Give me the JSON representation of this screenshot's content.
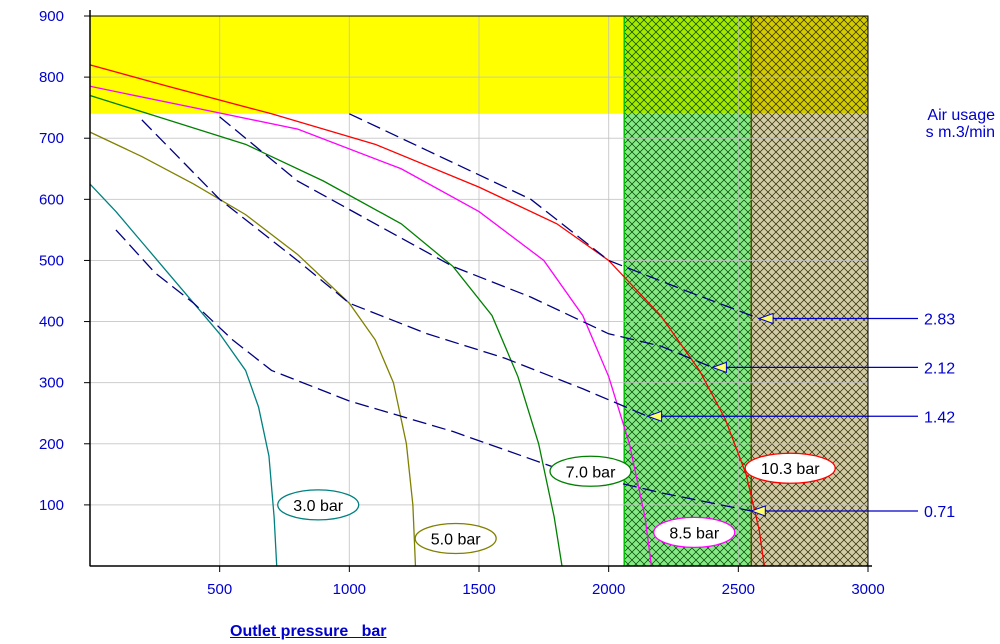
{
  "chart_data": {
    "type": "line",
    "xlabel": "Outlet pressure   bar",
    "ylabel": "Air usage\ns m.3/min",
    "xlim": [
      0,
      3000
    ],
    "ylim": [
      0,
      900
    ],
    "x_ticks": [
      500,
      1000,
      1500,
      2000,
      2500,
      3000
    ],
    "y_ticks": [
      100,
      200,
      300,
      400,
      500,
      600,
      700,
      800,
      900
    ],
    "grid": true,
    "regions": [
      {
        "type": "band-y",
        "from": 740,
        "to": 900,
        "x_to": 2060,
        "color": "#ffff00"
      },
      {
        "type": "band-x",
        "from": 2060,
        "to": 2550,
        "y_from": 740,
        "y_to": 900,
        "color": "#00c000",
        "hatch": "#ffff00"
      },
      {
        "type": "band-x",
        "from": 2060,
        "to": 2550,
        "y_from": 0,
        "y_to": 740,
        "color": "#00c000",
        "hatch": "#ccffcc"
      },
      {
        "type": "band-x",
        "from": 2550,
        "to": 3000,
        "y_from": 740,
        "y_to": 900,
        "color": "#7a6a00",
        "hatch": "#ffff00"
      },
      {
        "type": "band-x",
        "from": 2550,
        "to": 3000,
        "y_from": 0,
        "y_to": 740,
        "color": "#7a6a00",
        "hatch": "#ffffff"
      }
    ],
    "series": [
      {
        "name": "3.0 bar",
        "color": "#008080",
        "x": [
          0,
          100,
          200,
          300,
          400,
          500,
          600,
          650,
          690,
          710,
          720
        ],
        "y": [
          625,
          580,
          530,
          480,
          430,
          380,
          320,
          260,
          180,
          80,
          0
        ]
      },
      {
        "name": "5.0 bar",
        "color": "#808000",
        "x": [
          0,
          200,
          400,
          600,
          800,
          1000,
          1100,
          1170,
          1220,
          1245,
          1255
        ],
        "y": [
          710,
          670,
          625,
          575,
          510,
          430,
          370,
          300,
          200,
          100,
          0
        ]
      },
      {
        "name": "7.0 bar",
        "color": "#008000",
        "x": [
          0,
          300,
          600,
          900,
          1200,
          1400,
          1550,
          1650,
          1730,
          1790,
          1820
        ],
        "y": [
          770,
          730,
          690,
          630,
          560,
          490,
          410,
          310,
          200,
          80,
          0
        ]
      },
      {
        "name": "8.5 bar",
        "color": "#ff00ff",
        "x": [
          0,
          400,
          800,
          1200,
          1500,
          1750,
          1900,
          2000,
          2080,
          2140,
          2165
        ],
        "y": [
          785,
          750,
          715,
          650,
          580,
          500,
          410,
          310,
          200,
          80,
          0
        ]
      },
      {
        "name": "10.3 bar",
        "color": "#ff0000",
        "x": [
          0,
          300,
          700,
          1100,
          1500,
          1800,
          2000,
          2200,
          2350,
          2450,
          2530,
          2580,
          2600
        ],
        "y": [
          820,
          785,
          740,
          690,
          620,
          560,
          500,
          410,
          320,
          240,
          150,
          60,
          0
        ]
      }
    ],
    "air_usage_lines": [
      {
        "label": "2.83",
        "color": "#000080",
        "x": [
          1000,
          1300,
          1700,
          2000,
          2300,
          2580
        ],
        "y": [
          740,
          680,
          600,
          500,
          450,
          405
        ],
        "arrow_value": 405,
        "arrow_x": 2580
      },
      {
        "label": "2.12",
        "color": "#000080",
        "x": [
          500,
          800,
          1100,
          1400,
          1700,
          2000,
          2200,
          2400
        ],
        "y": [
          735,
          630,
          560,
          490,
          440,
          380,
          360,
          325
        ],
        "arrow_value": 325,
        "arrow_x": 2400
      },
      {
        "label": "1.42",
        "color": "#000080",
        "x": [
          200,
          500,
          800,
          1000,
          1300,
          1600,
          1900,
          2150
        ],
        "y": [
          730,
          600,
          500,
          430,
          380,
          340,
          290,
          245
        ],
        "arrow_value": 245,
        "arrow_x": 2150
      },
      {
        "label": "0.71",
        "color": "#000080",
        "x": [
          100,
          250,
          400,
          550,
          700,
          1000,
          1400,
          1800,
          2200,
          2550
        ],
        "y": [
          550,
          480,
          430,
          370,
          320,
          270,
          220,
          160,
          120,
          90
        ],
        "arrow_value": 90,
        "arrow_x": 2550
      }
    ],
    "curve_labels": [
      {
        "text": "3.0 bar",
        "x": 880,
        "y": 100,
        "color": "#008080"
      },
      {
        "text": "5.0 bar",
        "x": 1410,
        "y": 45,
        "color": "#808000"
      },
      {
        "text": "7.0 bar",
        "x": 1930,
        "y": 155,
        "color": "#008000"
      },
      {
        "text": "8.5 bar",
        "x": 2330,
        "y": 55,
        "color": "#ff00ff"
      },
      {
        "text": "10.3 bar",
        "x": 2700,
        "y": 160,
        "color": "#ff0000"
      }
    ]
  }
}
